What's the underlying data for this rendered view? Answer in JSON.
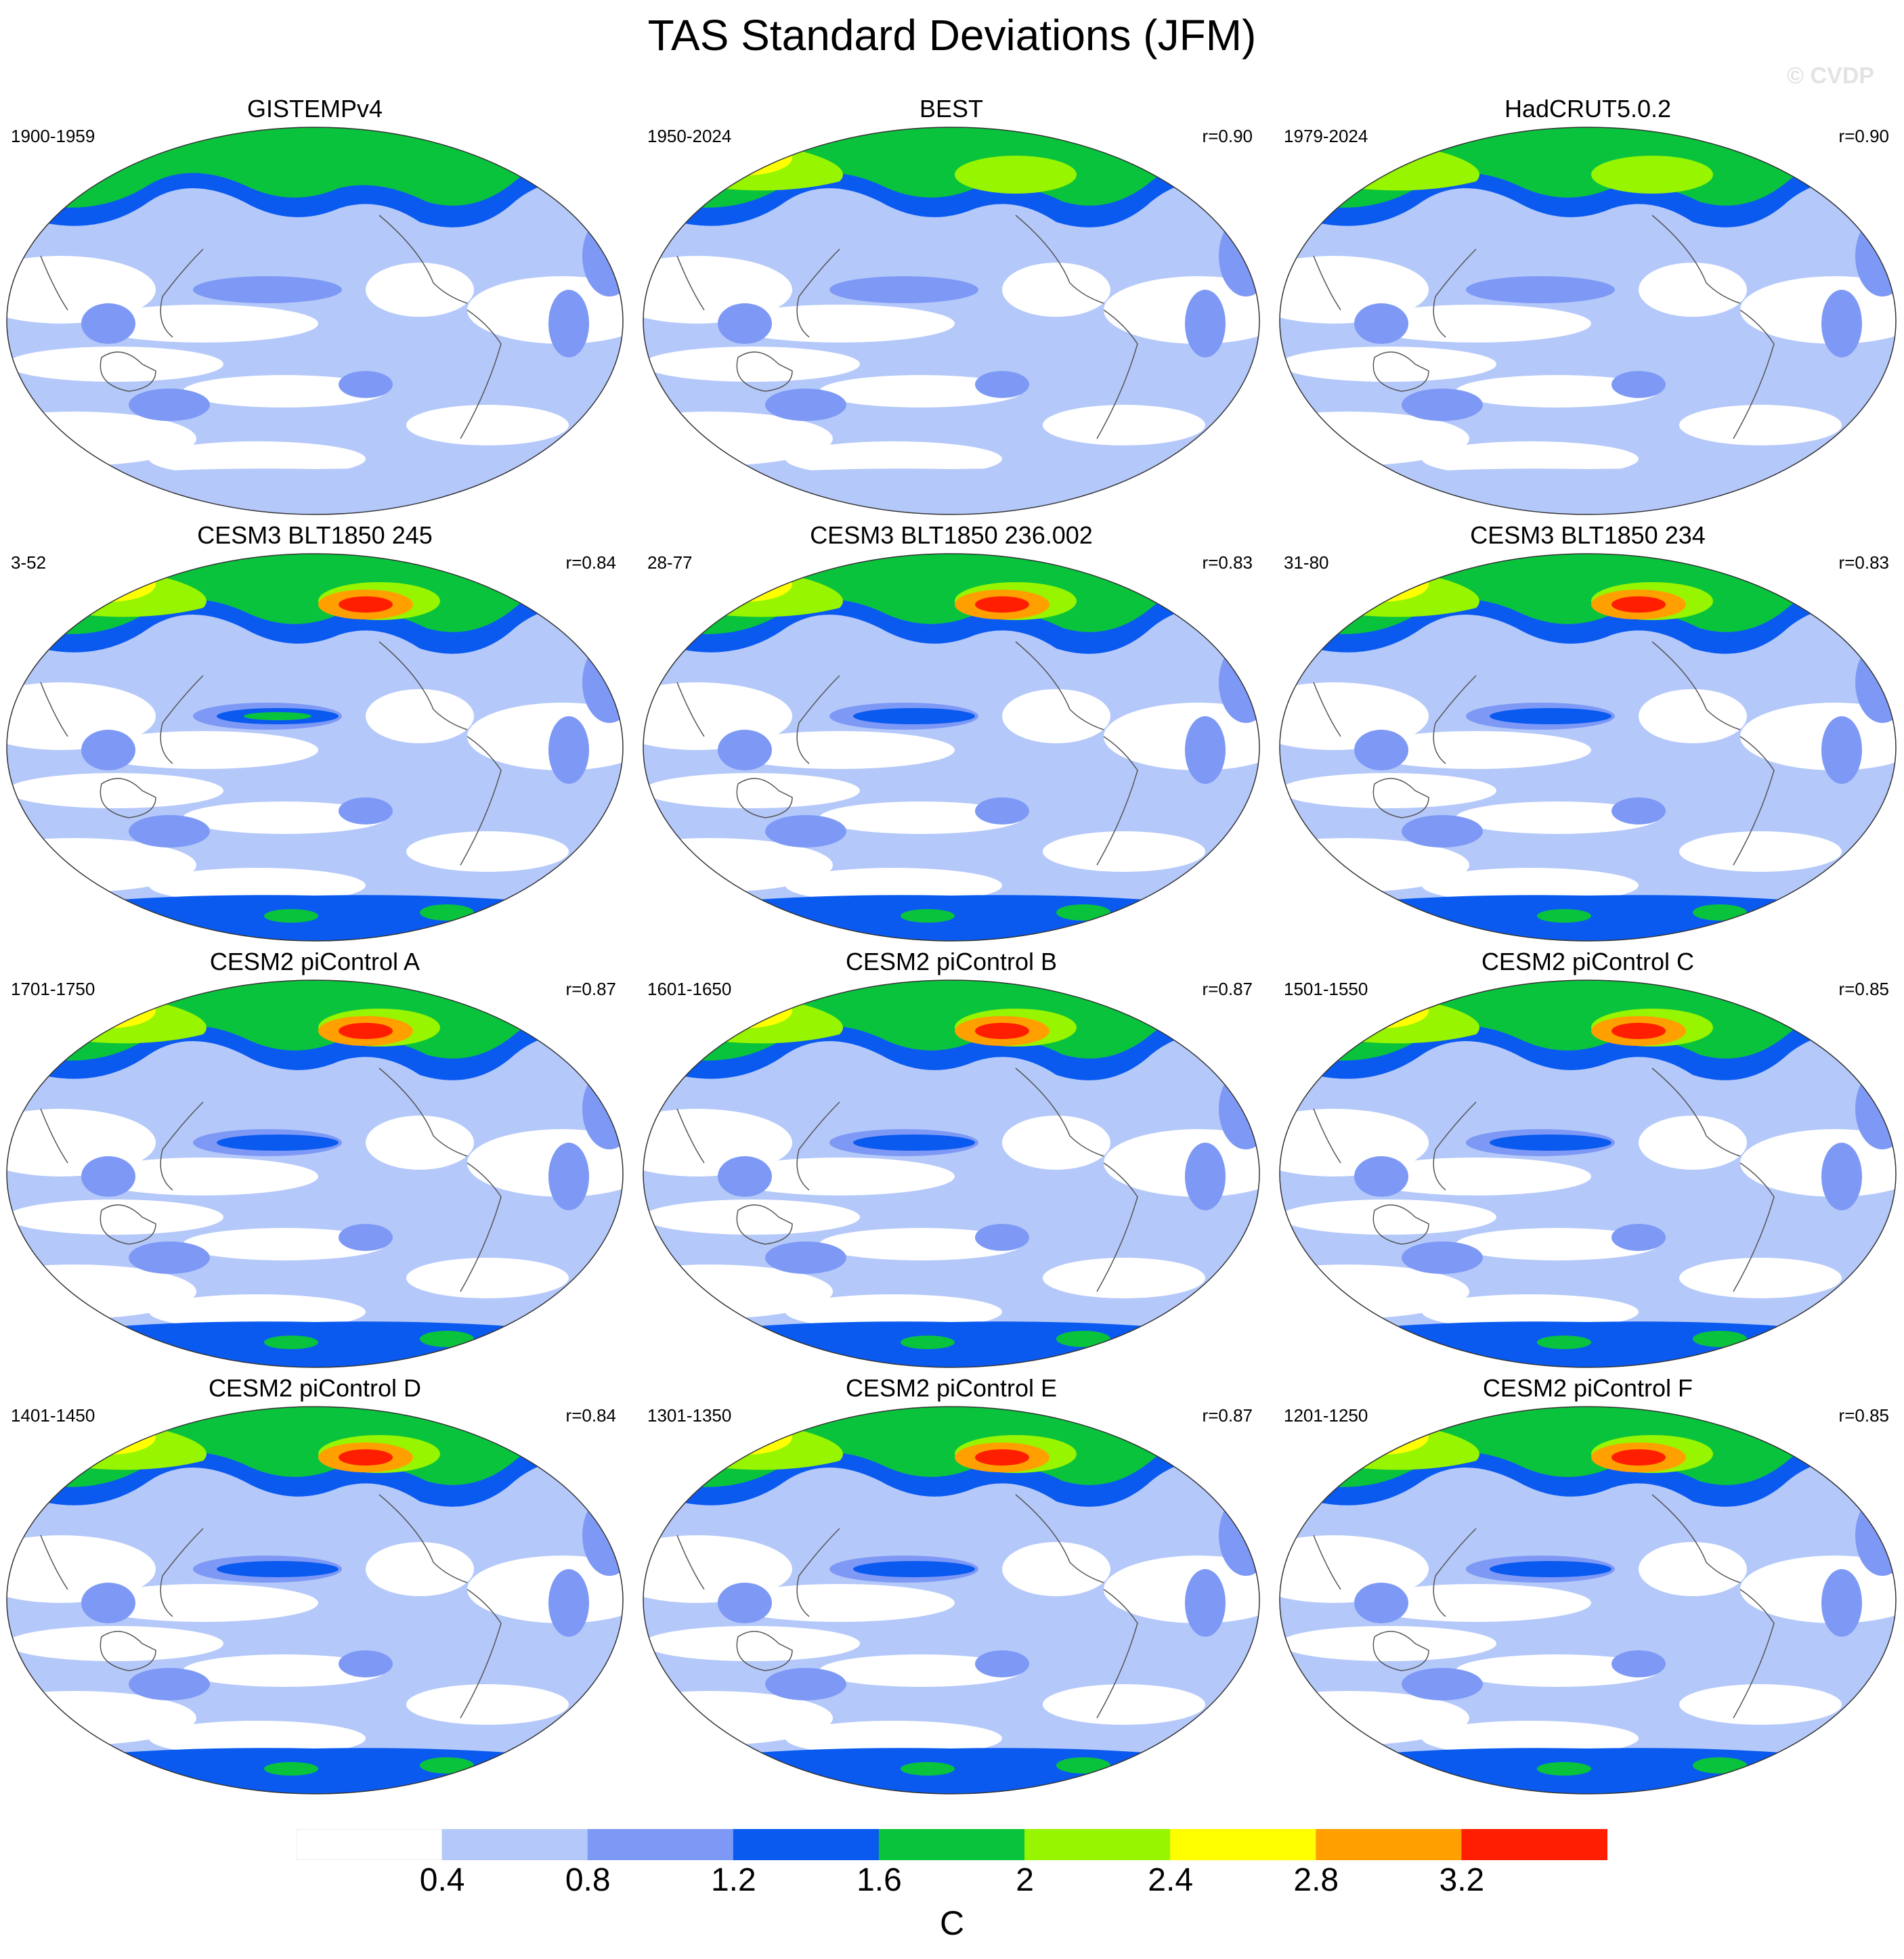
{
  "figure": {
    "title": "TAS Standard Deviations (JFM)",
    "watermark": "© CVDP"
  },
  "panels": [
    {
      "title": "GISTEMPv4",
      "period": "1900-1959",
      "corr": "",
      "intensity": 0.55
    },
    {
      "title": "BEST",
      "period": "1950-2024",
      "corr": "r=0.90",
      "intensity": 0.65
    },
    {
      "title": "HadCRUT5.0.2",
      "period": "1979-2024",
      "corr": "r=0.90",
      "intensity": 0.6
    },
    {
      "title": "CESM3 BLT1850 245",
      "period": "3-52",
      "corr": "r=0.84",
      "intensity": 1.0
    },
    {
      "title": "CESM3 BLT1850 236.002",
      "period": "28-77",
      "corr": "r=0.83",
      "intensity": 1.0
    },
    {
      "title": "CESM3 BLT1850 234",
      "period": "31-80",
      "corr": "r=0.83",
      "intensity": 1.0
    },
    {
      "title": "CESM2 piControl A",
      "period": "1701-1750",
      "corr": "r=0.87",
      "intensity": 0.9
    },
    {
      "title": "CESM2 piControl B",
      "period": "1601-1650",
      "corr": "r=0.87",
      "intensity": 0.9
    },
    {
      "title": "CESM2 piControl C",
      "period": "1501-1550",
      "corr": "r=0.85",
      "intensity": 0.9
    },
    {
      "title": "CESM2 piControl D",
      "period": "1401-1450",
      "corr": "r=0.84",
      "intensity": 0.9
    },
    {
      "title": "CESM2 piControl E",
      "period": "1301-1350",
      "corr": "r=0.87",
      "intensity": 0.9
    },
    {
      "title": "CESM2 piControl F",
      "period": "1201-1250",
      "corr": "r=0.85",
      "intensity": 0.9
    }
  ],
  "colorbar": {
    "units": "C",
    "levels": [
      "0.4",
      "0.8",
      "1.2",
      "1.6",
      "2",
      "2.4",
      "2.8",
      "3.2"
    ],
    "colors": [
      "#ffffff",
      "#b4c8fa",
      "#7e99f5",
      "#0a5af0",
      "#0ac33c",
      "#97f500",
      "#ffff00",
      "#ffa000",
      "#ff1e00"
    ]
  }
}
